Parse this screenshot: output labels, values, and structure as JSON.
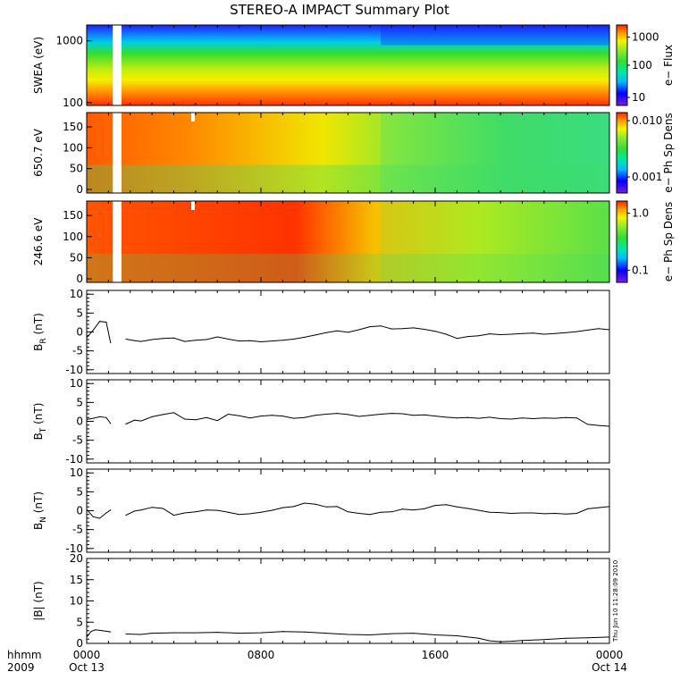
{
  "title": "STEREO-A IMPACT Summary Plot",
  "timestamp": "Thu Jun 10 11:28:09 2010",
  "x_axis": {
    "row1_labels": [
      "hhmm",
      "0000",
      "0800",
      "1600",
      "0000"
    ],
    "row2_labels": [
      "2009",
      "Oct 13",
      "Oct 14"
    ]
  },
  "colors": {
    "trace": "#000000",
    "colormap": [
      "#7a1fd8",
      "#0000ff",
      "#00bfff",
      "#00e8a0",
      "#33dd33",
      "#8ee830",
      "#f6f200",
      "#ff9900",
      "#ff2200"
    ]
  },
  "chart_data": [
    {
      "type": "heatmap",
      "ylabel": "SWEA (eV)",
      "yscale": "log",
      "ylim": [
        90,
        1800
      ],
      "yticks": [
        "100",
        "1000"
      ],
      "colorbar": {
        "label": "e− Flux",
        "scale": "log",
        "ticks": [
          "10",
          "100",
          "1000"
        ]
      },
      "data_gap_hours": [
        1.2,
        1.6
      ],
      "description_values": {
        "x": [
          0,
          24
        ],
        "color_trend": "high flux at low energy, decreasing toward 1800 eV"
      }
    },
    {
      "type": "heatmap",
      "ylabel": "650.7 eV",
      "ylim": [
        0,
        180
      ],
      "yticks": [
        "0",
        "50",
        "100",
        "150"
      ],
      "colorbar": {
        "label": "e− Ph Sp Dens",
        "scale": "log",
        "ticks": [
          "0.001",
          "0.010"
        ]
      },
      "data_gap_hours": [
        1.2,
        1.6
      ]
    },
    {
      "type": "heatmap",
      "ylabel": "246.6 eV",
      "ylim": [
        0,
        180
      ],
      "yticks": [
        "0",
        "50",
        "100",
        "150"
      ],
      "colorbar": {
        "label": "e− Ph Sp Dens",
        "scale": "log",
        "ticks": [
          "0.1",
          "1.0"
        ]
      },
      "data_gap_hours": [
        1.2,
        1.6
      ]
    },
    {
      "type": "line",
      "ylabel": {
        "main": "B",
        "sub": "R",
        "unit": " (nT)"
      },
      "ylim": [
        -11,
        11
      ],
      "yticks": [
        "10",
        "5",
        "0",
        "-5",
        "-10"
      ],
      "x": [
        0,
        0.3,
        0.6,
        0.9,
        1.1,
        1.4,
        1.8,
        2.2,
        2.5,
        3,
        3.5,
        4,
        4.5,
        5,
        5.5,
        6,
        6.5,
        7,
        7.5,
        8,
        8.5,
        9,
        9.5,
        10,
        10.5,
        11,
        11.5,
        12,
        12.5,
        13,
        13.5,
        14,
        14.5,
        15,
        15.5,
        16,
        16.5,
        17,
        17.5,
        18,
        18.5,
        19,
        19.5,
        20,
        20.5,
        21,
        21.5,
        22,
        22.5,
        23,
        23.5,
        24
      ],
      "y": [
        -1.5,
        0.5,
        2.8,
        2.6,
        -2.9,
        null,
        -1.9,
        -2.3,
        -2.5,
        -2.0,
        -1.7,
        -1.6,
        -2.5,
        -2.2,
        -2.0,
        -1.3,
        -1.9,
        -2.4,
        -2.3,
        -2.6,
        -2.4,
        -2.2,
        -1.9,
        -1.4,
        -0.8,
        -0.2,
        0.3,
        -0.1,
        0.6,
        1.4,
        1.6,
        0.8,
        0.9,
        1.1,
        0.7,
        0.2,
        -0.6,
        -1.7,
        -1.2,
        -1.0,
        -0.5,
        -0.7,
        -0.6,
        -0.4,
        -0.3,
        -0.6,
        -0.4,
        -0.2,
        0.1,
        0.5,
        0.9,
        0.6
      ]
    },
    {
      "type": "line",
      "ylabel": {
        "main": "B",
        "sub": "T",
        "unit": " (nT)"
      },
      "ylim": [
        -11,
        11
      ],
      "yticks": [
        "10",
        "5",
        "0",
        "-5",
        "-10"
      ],
      "x": [
        0,
        0.3,
        0.6,
        0.9,
        1.1,
        1.4,
        1.8,
        2.2,
        2.5,
        3,
        3.5,
        4,
        4.5,
        5,
        5.5,
        6,
        6.5,
        7,
        7.5,
        8,
        8.5,
        9,
        9.5,
        10,
        10.5,
        11,
        11.5,
        12,
        12.5,
        13,
        13.5,
        14,
        14.5,
        15,
        15.5,
        16,
        16.5,
        17,
        17.5,
        18,
        18.5,
        19,
        19.5,
        20,
        20.5,
        21,
        21.5,
        22,
        22.5,
        23,
        23.5,
        24
      ],
      "y": [
        0.5,
        0.8,
        1.2,
        1.0,
        -0.6,
        null,
        -0.7,
        0.3,
        0.1,
        1.2,
        1.8,
        2.3,
        0.6,
        0.4,
        1.0,
        0.2,
        1.9,
        1.5,
        0.9,
        1.4,
        1.6,
        1.4,
        0.8,
        1.0,
        1.6,
        1.9,
        2.1,
        1.8,
        1.3,
        1.6,
        1.9,
        2.1,
        2.0,
        1.6,
        1.7,
        1.4,
        1.1,
        0.9,
        1.0,
        0.8,
        1.1,
        0.7,
        0.6,
        0.9,
        0.7,
        0.9,
        0.8,
        1.0,
        0.9,
        -0.8,
        -1.1,
        -1.3
      ]
    },
    {
      "type": "line",
      "ylabel": {
        "main": "B",
        "sub": "N",
        "unit": " (nT)"
      },
      "ylim": [
        -11,
        11
      ],
      "yticks": [
        "10",
        "5",
        "0",
        "-5",
        "-10"
      ],
      "x": [
        0,
        0.3,
        0.6,
        0.9,
        1.1,
        1.4,
        1.8,
        2.2,
        2.5,
        3,
        3.5,
        4,
        4.5,
        5,
        5.5,
        6,
        6.5,
        7,
        7.5,
        8,
        8.5,
        9,
        9.5,
        10,
        10.5,
        11,
        11.5,
        12,
        12.5,
        13,
        13.5,
        14,
        14.5,
        15,
        15.5,
        16,
        16.5,
        17,
        17.5,
        18,
        18.5,
        19,
        19.5,
        20,
        20.5,
        21,
        21.5,
        22,
        22.5,
        23,
        23.5,
        24
      ],
      "y": [
        0.3,
        -1.6,
        -2.0,
        -0.6,
        0.2,
        null,
        -1.2,
        -0.1,
        0.2,
        0.9,
        0.6,
        -1.2,
        -0.6,
        -0.3,
        0.2,
        0.1,
        -0.4,
        -1.0,
        -0.8,
        -0.4,
        0.1,
        0.8,
        1.1,
        2.0,
        1.7,
        1.0,
        1.1,
        -0.3,
        -0.7,
        -1.0,
        -0.4,
        -0.3,
        0.4,
        0.2,
        0.5,
        1.4,
        1.6,
        1.0,
        0.6,
        0.1,
        -0.4,
        -0.5,
        -0.7,
        -0.6,
        -0.6,
        -0.8,
        -0.7,
        -0.9,
        -0.7,
        0.5,
        0.8,
        1.1
      ]
    },
    {
      "type": "line",
      "ylabel": {
        "main": "|B|",
        "sub": "",
        "unit": " (nT)"
      },
      "ylim": [
        0,
        20
      ],
      "yticks": [
        "20",
        "15",
        "10",
        "5",
        "0"
      ],
      "x": [
        0,
        0.2,
        0.4,
        0.7,
        1.0,
        1.1,
        1.4,
        1.8,
        2.5,
        3,
        4,
        5,
        6,
        7,
        8,
        9,
        10,
        11,
        12,
        13,
        14,
        15,
        16,
        17,
        18,
        18.5,
        19,
        19.5,
        20,
        21,
        22,
        23,
        24
      ],
      "y": [
        1.5,
        2.8,
        3.2,
        3.0,
        2.8,
        2.7,
        null,
        2.2,
        2.1,
        2.4,
        2.5,
        2.5,
        2.6,
        2.4,
        2.5,
        2.8,
        2.7,
        2.4,
        2.1,
        2.0,
        2.3,
        2.4,
        2.0,
        1.8,
        1.2,
        0.6,
        0.4,
        0.5,
        0.7,
        0.9,
        1.2,
        1.3,
        1.5
      ]
    }
  ]
}
